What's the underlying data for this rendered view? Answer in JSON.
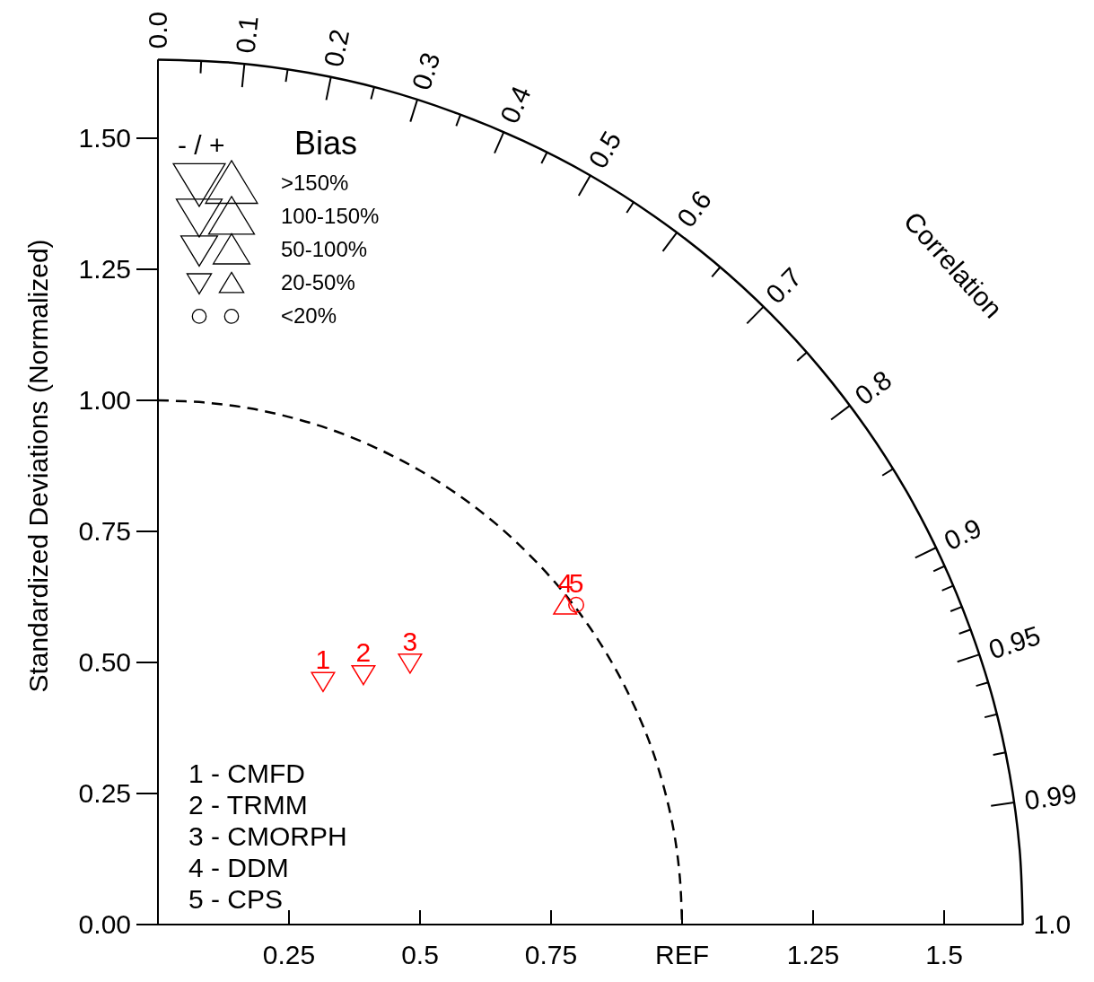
{
  "chart_data": {
    "type": "scatter",
    "ylabel": "Standardized Deviations (Normalized)",
    "xlim": [
      0,
      1.65
    ],
    "ylim": [
      0,
      1.65
    ],
    "xticks": [
      0.25,
      0.5,
      0.75,
      {
        "value": 1,
        "label": "REF"
      },
      1.25,
      1.5
    ],
    "yticks": [
      {
        "value": 0,
        "label": "0.00"
      },
      0.25,
      {
        "value": 0.5,
        "label": "0.50"
      },
      0.75,
      {
        "value": 1,
        "label": "1.00"
      },
      1.25,
      {
        "value": 1.5,
        "label": "1.50"
      }
    ],
    "series": [
      {
        "type": "line",
        "color": "#000000",
        "line_style": "solid",
        "x": [
          0,
          0.144,
          0.287,
          0.427,
          0.564,
          0.697,
          0.825,
          0.946,
          1.061,
          1.167,
          1.264,
          1.352,
          1.429,
          1.495,
          1.55,
          1.594,
          1.625,
          1.644,
          1.65
        ],
        "values": [
          1.65,
          1.644,
          1.625,
          1.594,
          1.55,
          1.495,
          1.429,
          1.352,
          1.264,
          1.167,
          1.061,
          0.946,
          0.825,
          0.697,
          0.564,
          0.427,
          0.287,
          0.144,
          0
        ]
      },
      {
        "type": "line",
        "color": "#000000",
        "line_style": "dashed",
        "x": [
          0,
          0.087,
          0.174,
          0.259,
          0.342,
          0.423,
          0.5,
          0.574,
          0.643,
          0.707,
          0.766,
          0.819,
          0.866,
          0.906,
          0.94,
          0.966,
          0.985,
          0.996,
          1
        ],
        "values": [
          1,
          0.996,
          0.985,
          0.966,
          0.94,
          0.906,
          0.866,
          0.819,
          0.766,
          0.707,
          0.643,
          0.574,
          0.5,
          0.423,
          0.342,
          0.259,
          0.174,
          0.087,
          0
        ]
      },
      {
        "name": "1",
        "color": "#ff0000",
        "marker": "triangle-down",
        "x": [
          0.315
        ],
        "values": [
          0.464
        ]
      },
      {
        "name": "2",
        "color": "#ff0000",
        "marker": "triangle-down",
        "x": [
          0.392
        ],
        "values": [
          0.477
        ]
      },
      {
        "name": "3",
        "color": "#ff0000",
        "marker": "triangle-down",
        "x": [
          0.481
        ],
        "values": [
          0.499
        ]
      },
      {
        "name": "4",
        "color": "#ff0000",
        "marker": "triangle",
        "x": [
          0.777
        ],
        "values": [
          0.609
        ]
      },
      {
        "name": "5",
        "color": "#ff0000",
        "marker": "circle",
        "x": [
          0.798
        ],
        "values": [
          0.61
        ]
      }
    ],
    "annotations": [
      "- / +",
      "Bias",
      ">150%",
      "100-150%",
      "50-100%",
      "20-50%",
      "<20%",
      "1 - CMFD",
      "2 - TRMM",
      "3 - CMORPH",
      "4 - DDM",
      "5 - CPS",
      "Correlation",
      "0.0",
      "0.1",
      "0.2",
      "0.3",
      "0.4",
      "0.5",
      "0.6",
      "0.7",
      "0.8",
      "0.9",
      "0.95",
      "0.99",
      "1.0"
    ]
  }
}
